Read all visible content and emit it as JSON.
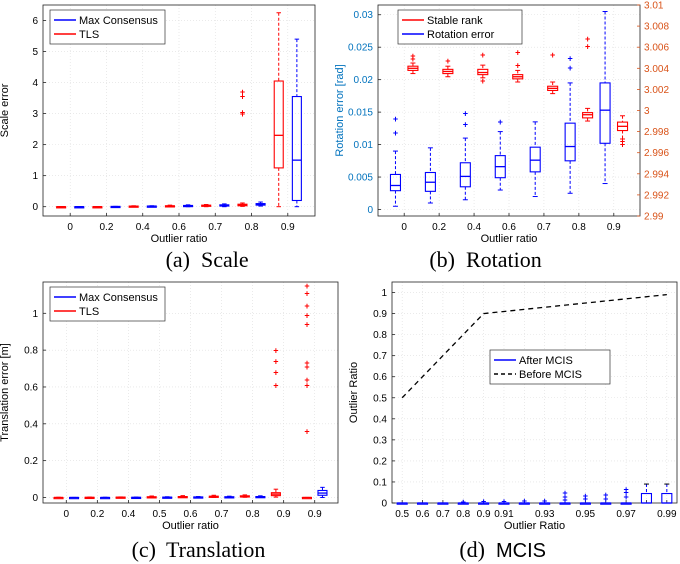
{
  "figure": {
    "captions": {
      "a_label": "(a)",
      "a_name": "Scale",
      "b_label": "(b)",
      "b_name": "Rotation",
      "c_label": "(c)",
      "c_name": "Translation",
      "d_label": "(d)",
      "d_name": "MCIS"
    }
  },
  "colors": {
    "blue": "#0000ff",
    "red": "#ff0000",
    "grid": "#dddddd",
    "right_axis": "#d95319",
    "left_axis_b": "#0072bd"
  },
  "chart_data": [
    {
      "id": "a",
      "type": "box",
      "title": "",
      "xlabel": "Outlier ratio",
      "ylabel": "Scale error",
      "ylim": [
        -0.3,
        6.5
      ],
      "yticks": [
        0,
        1,
        2,
        3,
        4,
        5,
        6
      ],
      "categories": [
        "0",
        "0.2",
        "0.4",
        "0.6",
        "0.7",
        "0.8",
        "0.9"
      ],
      "legend": {
        "position": "top-left",
        "entries": [
          {
            "name": "Max Consensus",
            "color": "blue"
          },
          {
            "name": "TLS",
            "color": "red"
          }
        ]
      },
      "series": [
        {
          "name": "TLS",
          "color": "red",
          "boxes": [
            {
              "x": -0.25,
              "min": 0,
              "q1": 0,
              "med": 0,
              "q3": 0,
              "max": 0
            },
            {
              "x": 0.75,
              "min": 0,
              "q1": 0,
              "med": 0,
              "q3": 0,
              "max": 0
            },
            {
              "x": 1.75,
              "min": 0,
              "q1": 0,
              "med": 0.01,
              "q3": 0.02,
              "max": 0.03
            },
            {
              "x": 2.75,
              "min": 0,
              "q1": 0.01,
              "med": 0.02,
              "q3": 0.03,
              "max": 0.05
            },
            {
              "x": 3.75,
              "min": 0,
              "q1": 0.02,
              "med": 0.03,
              "q3": 0.05,
              "max": 0.07
            },
            {
              "x": 4.75,
              "min": 0.01,
              "q1": 0.03,
              "med": 0.05,
              "q3": 0.08,
              "max": 0.12
            },
            {
              "x": 5.75,
              "min": 0,
              "q1": 1.25,
              "med": 2.3,
              "q3": 4.05,
              "max": 6.25
            }
          ],
          "outliers": [
            [
              4.75,
              3.0
            ],
            [
              4.75,
              3.05
            ],
            [
              4.75,
              3.55
            ],
            [
              4.75,
              3.7
            ]
          ]
        },
        {
          "name": "Max Consensus",
          "color": "blue",
          "boxes": [
            {
              "x": 0.25,
              "min": 0,
              "q1": 0,
              "med": 0,
              "q3": 0,
              "max": 0
            },
            {
              "x": 1.25,
              "min": 0,
              "q1": 0,
              "med": 0,
              "q3": 0.01,
              "max": 0.01
            },
            {
              "x": 2.25,
              "min": 0,
              "q1": 0.01,
              "med": 0.02,
              "q3": 0.02,
              "max": 0.03
            },
            {
              "x": 3.25,
              "min": 0,
              "q1": 0.01,
              "med": 0.02,
              "q3": 0.04,
              "max": 0.06
            },
            {
              "x": 4.25,
              "min": 0,
              "q1": 0.02,
              "med": 0.04,
              "q3": 0.06,
              "max": 0.09
            },
            {
              "x": 5.25,
              "min": 0.02,
              "q1": 0.05,
              "med": 0.07,
              "q3": 0.1,
              "max": 0.15
            },
            {
              "x": 6.25,
              "min": 0,
              "q1": 0.2,
              "med": 1.5,
              "q3": 3.55,
              "max": 5.4
            }
          ],
          "outliers": []
        }
      ]
    },
    {
      "id": "b",
      "type": "box",
      "title": "",
      "xlabel": "Outlier ratio",
      "ylabel": "Rotation error [rad]",
      "ylim": [
        -0.001,
        0.0315
      ],
      "yticks": [
        0,
        0.005,
        0.01,
        0.015,
        0.02,
        0.025,
        0.03
      ],
      "yticklabels": [
        "0",
        "0.005",
        "0.01",
        "0.015",
        "0.02",
        "0.025",
        "0.03"
      ],
      "y2lim": [
        2.99,
        3.01
      ],
      "y2ticks": [
        2.99,
        2.992,
        2.994,
        2.996,
        2.998,
        3.0,
        3.002,
        3.004,
        3.006,
        3.008,
        3.01
      ],
      "y2ticklabels": [
        "2.99",
        "2.992",
        "2.994",
        "2.996",
        "2.998",
        "3",
        "3.002",
        "3.004",
        "3.006",
        "3.008",
        "3.01"
      ],
      "categories": [
        "0",
        "0.2",
        "0.4",
        "0.6",
        "0.7",
        "0.8",
        "0.9"
      ],
      "legend": {
        "position": "top-left",
        "entries": [
          {
            "name": "Stable rank",
            "color": "red"
          },
          {
            "name": "Rotation error",
            "color": "blue"
          }
        ]
      },
      "series": [
        {
          "name": "Stable rank",
          "color": "red",
          "axis": "right",
          "boxes": [
            {
              "x": 0.25,
              "min": 3.0035,
              "q1": 3.0038,
              "med": 3.004,
              "q3": 3.0042,
              "max": 3.0045
            },
            {
              "x": 1.25,
              "min": 3.0032,
              "q1": 3.0035,
              "med": 3.0037,
              "q3": 3.0039,
              "max": 3.0042
            },
            {
              "x": 2.25,
              "min": 3.0031,
              "q1": 3.0034,
              "med": 3.0036,
              "q3": 3.0039,
              "max": 3.0043
            },
            {
              "x": 3.25,
              "min": 3.0027,
              "q1": 3.003,
              "med": 3.0032,
              "q3": 3.0034,
              "max": 3.0038
            },
            {
              "x": 4.25,
              "min": 3.0016,
              "q1": 3.0019,
              "med": 3.0021,
              "q3": 3.0023,
              "max": 3.0027
            },
            {
              "x": 5.25,
              "min": 2.999,
              "q1": 2.9993,
              "med": 2.9996,
              "q3": 2.9998,
              "max": 3.0002
            },
            {
              "x": 6.25,
              "min": 2.9973,
              "q1": 2.9981,
              "med": 2.9985,
              "q3": 2.9989,
              "max": 2.9995
            }
          ],
          "outliers": [
            [
              0.25,
              3.0049
            ],
            [
              0.25,
              3.0052
            ],
            [
              1.25,
              3.0047
            ],
            [
              2.25,
              3.0053
            ],
            [
              2.25,
              3.0028
            ],
            [
              3.25,
              3.0055
            ],
            [
              3.25,
              3.0043
            ],
            [
              4.25,
              3.0053
            ],
            [
              5.25,
              3.0061
            ],
            [
              5.25,
              3.0068
            ],
            [
              6.25,
              2.9968
            ],
            [
              6.25,
              2.9971
            ]
          ]
        },
        {
          "name": "Rotation error",
          "color": "blue",
          "axis": "left",
          "boxes": [
            {
              "x": -0.25,
              "min": 0.0005,
              "q1": 0.0029,
              "med": 0.0037,
              "q3": 0.0054,
              "max": 0.009
            },
            {
              "x": 0.75,
              "min": 0.001,
              "q1": 0.0028,
              "med": 0.0042,
              "q3": 0.0057,
              "max": 0.0095
            },
            {
              "x": 1.75,
              "min": 0.0015,
              "q1": 0.0035,
              "med": 0.0051,
              "q3": 0.0072,
              "max": 0.011
            },
            {
              "x": 2.75,
              "min": 0.003,
              "q1": 0.0049,
              "med": 0.0066,
              "q3": 0.0083,
              "max": 0.012
            },
            {
              "x": 3.75,
              "min": 0.002,
              "q1": 0.0058,
              "med": 0.0076,
              "q3": 0.0096,
              "max": 0.0135
            },
            {
              "x": 4.75,
              "min": 0.0025,
              "q1": 0.0075,
              "med": 0.0097,
              "q3": 0.0133,
              "max": 0.0195
            },
            {
              "x": 5.75,
              "min": 0.004,
              "q1": 0.0102,
              "med": 0.0153,
              "q3": 0.0195,
              "max": 0.0305
            }
          ],
          "outliers": [
            [
              -0.25,
              0.0118
            ],
            [
              -0.25,
              0.014
            ],
            [
              1.75,
              0.0131
            ],
            [
              1.75,
              0.0148
            ],
            [
              2.75,
              0.0135
            ],
            [
              4.75,
              0.0218
            ],
            [
              4.75,
              0.0233
            ]
          ]
        }
      ]
    },
    {
      "id": "c",
      "type": "box",
      "title": "",
      "xlabel": "Outlier ratio",
      "ylabel": "Translation error [m]",
      "ylim": [
        -0.03,
        1.17
      ],
      "yticks": [
        0,
        0.2,
        0.4,
        0.6,
        0.8,
        1.0
      ],
      "yticklabels": [
        "0",
        "0.2",
        "0.4",
        "0.6",
        "0.8",
        "1"
      ],
      "categories": [
        "0",
        "0.2",
        "0.4",
        "0.5",
        "0.6",
        "0.7",
        "0.8",
        "0.9",
        "0.9"
      ],
      "legend": {
        "position": "top-left",
        "entries": [
          {
            "name": "Max Consensus",
            "color": "blue"
          },
          {
            "name": "TLS",
            "color": "red"
          }
        ]
      },
      "series": [
        {
          "name": "TLS",
          "color": "red",
          "boxes": [
            {
              "x": -0.25,
              "min": 0,
              "q1": 0,
              "med": 0,
              "q3": 0,
              "max": 0.001
            },
            {
              "x": 0.75,
              "min": 0,
              "q1": 0,
              "med": 0,
              "q3": 0.001,
              "max": 0.002
            },
            {
              "x": 1.75,
              "min": 0,
              "q1": 0,
              "med": 0.001,
              "q3": 0.002,
              "max": 0.003
            },
            {
              "x": 2.75,
              "min": 0,
              "q1": 0.001,
              "med": 0.002,
              "q3": 0.004,
              "max": 0.008
            },
            {
              "x": 3.75,
              "min": 0,
              "q1": 0.002,
              "med": 0.003,
              "q3": 0.005,
              "max": 0.01
            },
            {
              "x": 4.75,
              "min": 0,
              "q1": 0.003,
              "med": 0.005,
              "q3": 0.007,
              "max": 0.012
            },
            {
              "x": 5.75,
              "min": 0.001,
              "q1": 0.004,
              "med": 0.006,
              "q3": 0.009,
              "max": 0.014
            },
            {
              "x": 6.75,
              "min": 0.002,
              "q1": 0.01,
              "med": 0.018,
              "q3": 0.026,
              "max": 0.045
            },
            {
              "x": 7.75,
              "min": 0,
              "q1": 0,
              "med": 0,
              "q3": 0,
              "max": 0
            }
          ],
          "outliers": [
            [
              6.75,
              0.61
            ],
            [
              6.75,
              0.68
            ],
            [
              6.75,
              0.74
            ],
            [
              6.75,
              0.8
            ],
            [
              7.75,
              0.36
            ],
            [
              7.75,
              0.61
            ],
            [
              7.75,
              0.64
            ],
            [
              7.75,
              0.71
            ],
            [
              7.75,
              0.73
            ],
            [
              7.75,
              0.94
            ],
            [
              7.75,
              0.99
            ],
            [
              7.75,
              1.04
            ],
            [
              7.75,
              1.11
            ],
            [
              7.75,
              1.15
            ]
          ]
        },
        {
          "name": "Max Consensus",
          "color": "blue",
          "boxes": [
            {
              "x": 0.25,
              "min": 0,
              "q1": 0,
              "med": 0,
              "q3": 0,
              "max": 0
            },
            {
              "x": 1.25,
              "min": 0,
              "q1": 0,
              "med": 0,
              "q3": 0,
              "max": 0.001
            },
            {
              "x": 2.25,
              "min": 0,
              "q1": 0,
              "med": 0,
              "q3": 0.001,
              "max": 0.002
            },
            {
              "x": 3.25,
              "min": 0,
              "q1": 0.001,
              "med": 0.001,
              "q3": 0.002,
              "max": 0.004
            },
            {
              "x": 4.25,
              "min": 0,
              "q1": 0.001,
              "med": 0.002,
              "q3": 0.003,
              "max": 0.005
            },
            {
              "x": 5.25,
              "min": 0,
              "q1": 0.001,
              "med": 0.002,
              "q3": 0.004,
              "max": 0.007
            },
            {
              "x": 6.25,
              "min": 0,
              "q1": 0.002,
              "med": 0.003,
              "q3": 0.005,
              "max": 0.009
            },
            {
              "x": 8.25,
              "min": 0,
              "q1": 0.012,
              "med": 0.024,
              "q3": 0.038,
              "max": 0.055
            }
          ],
          "outliers": []
        }
      ]
    },
    {
      "id": "d",
      "type": "box+line",
      "title": "",
      "xlabel": "Outlier Ratio",
      "ylabel": "Outlier Ratio",
      "ylim": [
        0,
        1.05
      ],
      "yticks": [
        0,
        0.1,
        0.2,
        0.3,
        0.4,
        0.5,
        0.6,
        0.7,
        0.8,
        0.9,
        1.0
      ],
      "yticklabels": [
        "0",
        "0.1",
        "0.2",
        "0.3",
        "0.4",
        "0.5",
        "0.6",
        "0.7",
        "0.8",
        "0.9",
        "1"
      ],
      "categories": [
        "0.5",
        "0.6",
        "0.7",
        "0.8",
        "0.9",
        "0.91",
        "",
        "0.93",
        "",
        "0.95",
        "",
        "0.97",
        "",
        "0.99"
      ],
      "legend": {
        "position": "center",
        "entries": [
          {
            "name": "After MCIS",
            "color": "blue"
          },
          {
            "name": "Before MCIS",
            "color": "black",
            "dash": true
          }
        ]
      },
      "line": {
        "name": "Before MCIS",
        "x": [
          0,
          4,
          13
        ],
        "y": [
          0.5,
          0.9,
          0.99
        ]
      },
      "series": [
        {
          "name": "After MCIS",
          "color": "blue",
          "boxes": [
            {
              "x": 0,
              "min": 0,
              "q1": 0,
              "med": 0,
              "q3": 0,
              "max": 0
            },
            {
              "x": 1,
              "min": 0,
              "q1": 0,
              "med": 0,
              "q3": 0,
              "max": 0
            },
            {
              "x": 2,
              "min": 0,
              "q1": 0,
              "med": 0,
              "q3": 0,
              "max": 0
            },
            {
              "x": 3,
              "min": 0,
              "q1": 0,
              "med": 0,
              "q3": 0,
              "max": 0
            },
            {
              "x": 4,
              "min": 0,
              "q1": 0,
              "med": 0,
              "q3": 0,
              "max": 0
            },
            {
              "x": 5,
              "min": 0,
              "q1": 0,
              "med": 0,
              "q3": 0,
              "max": 0
            },
            {
              "x": 6,
              "min": 0,
              "q1": 0,
              "med": 0,
              "q3": 0,
              "max": 0
            },
            {
              "x": 7,
              "min": 0,
              "q1": 0,
              "med": 0,
              "q3": 0,
              "max": 0
            },
            {
              "x": 8,
              "min": 0,
              "q1": 0,
              "med": 0,
              "q3": 0,
              "max": 0
            },
            {
              "x": 9,
              "min": 0,
              "q1": 0,
              "med": 0,
              "q3": 0,
              "max": 0
            },
            {
              "x": 10,
              "min": 0,
              "q1": 0,
              "med": 0,
              "q3": 0,
              "max": 0
            },
            {
              "x": 11,
              "min": 0,
              "q1": 0,
              "med": 0,
              "q3": 0,
              "max": 0
            },
            {
              "x": 12,
              "min": 0,
              "q1": 0,
              "med": 0,
              "q3": 0.045,
              "max": 0.09
            },
            {
              "x": 13,
              "min": 0,
              "q1": 0,
              "med": 0,
              "q3": 0.045,
              "max": 0.09
            }
          ],
          "outliers": [
            [
              3,
              0.005
            ],
            [
              4,
              0.007
            ],
            [
              5,
              0.008
            ],
            [
              6,
              0.01
            ],
            [
              7,
              0.01
            ],
            [
              8,
              0.015
            ],
            [
              8,
              0.03
            ],
            [
              8,
              0.048
            ],
            [
              9,
              0.02
            ],
            [
              9,
              0.035
            ],
            [
              10,
              0.02
            ],
            [
              10,
              0.04
            ],
            [
              11,
              0.03
            ],
            [
              11,
              0.05
            ],
            [
              11,
              0.065
            ]
          ]
        }
      ]
    }
  ]
}
